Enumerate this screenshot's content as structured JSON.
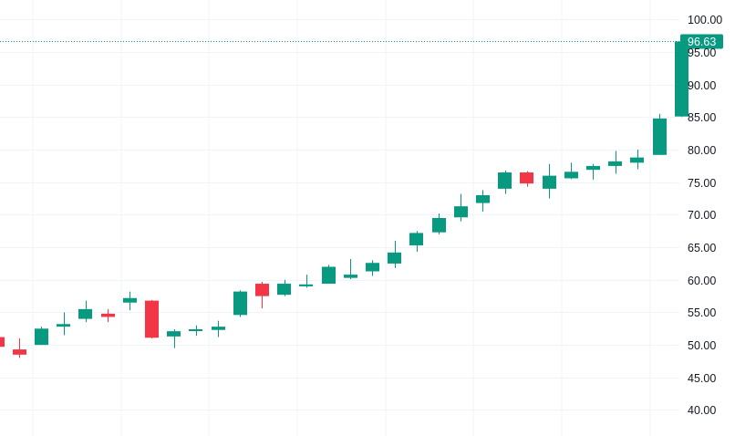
{
  "chart_data": {
    "type": "candlestick",
    "ylim": [
      36,
      103
    ],
    "y_ticks": [
      "40.00",
      "45.00",
      "50.00",
      "55.00",
      "60.00",
      "65.00",
      "70.00",
      "75.00",
      "80.00",
      "85.00",
      "90.00",
      "95.00",
      "100.00"
    ],
    "grid": true,
    "last_price": "96.63",
    "colors": {
      "up": "#089981",
      "down": "#f23645",
      "grid": "#f0f3fa",
      "axis_text": "#131722",
      "last_line": "#089981"
    },
    "candles": [
      {
        "open": 51.2,
        "high": 51.3,
        "low": 49.5,
        "close": 49.7
      },
      {
        "open": 49.3,
        "high": 51.0,
        "low": 48.0,
        "close": 48.5
      },
      {
        "open": 50.0,
        "high": 52.8,
        "low": 50.0,
        "close": 52.5
      },
      {
        "open": 52.8,
        "high": 55.0,
        "low": 51.5,
        "close": 53.2
      },
      {
        "open": 54.0,
        "high": 56.8,
        "low": 53.5,
        "close": 55.5
      },
      {
        "open": 54.8,
        "high": 55.5,
        "low": 53.5,
        "close": 54.3
      },
      {
        "open": 56.5,
        "high": 58.2,
        "low": 55.3,
        "close": 57.2
      },
      {
        "open": 56.8,
        "high": 56.9,
        "low": 51.0,
        "close": 51.1
      },
      {
        "open": 51.3,
        "high": 52.4,
        "low": 49.5,
        "close": 52.1
      },
      {
        "open": 52.2,
        "high": 53.0,
        "low": 51.4,
        "close": 52.4
      },
      {
        "open": 52.3,
        "high": 53.7,
        "low": 51.2,
        "close": 52.8
      },
      {
        "open": 54.6,
        "high": 58.4,
        "low": 54.3,
        "close": 58.2
      },
      {
        "open": 59.4,
        "high": 59.7,
        "low": 55.6,
        "close": 57.5
      },
      {
        "open": 57.7,
        "high": 60.0,
        "low": 57.5,
        "close": 59.4
      },
      {
        "open": 59.0,
        "high": 60.8,
        "low": 58.8,
        "close": 59.3
      },
      {
        "open": 59.4,
        "high": 62.3,
        "low": 59.4,
        "close": 62.0
      },
      {
        "open": 60.3,
        "high": 63.2,
        "low": 60.1,
        "close": 60.8
      },
      {
        "open": 61.3,
        "high": 63.0,
        "low": 60.6,
        "close": 62.6
      },
      {
        "open": 62.5,
        "high": 66.0,
        "low": 61.8,
        "close": 64.2
      },
      {
        "open": 65.3,
        "high": 67.5,
        "low": 64.3,
        "close": 67.2
      },
      {
        "open": 67.3,
        "high": 70.2,
        "low": 67.0,
        "close": 69.5
      },
      {
        "open": 69.6,
        "high": 73.2,
        "low": 69.0,
        "close": 71.3
      },
      {
        "open": 71.8,
        "high": 73.8,
        "low": 70.5,
        "close": 73.0
      },
      {
        "open": 74.0,
        "high": 76.8,
        "low": 73.2,
        "close": 76.5
      },
      {
        "open": 76.5,
        "high": 76.7,
        "low": 74.3,
        "close": 74.8
      },
      {
        "open": 74.0,
        "high": 77.8,
        "low": 72.5,
        "close": 76.0
      },
      {
        "open": 75.6,
        "high": 78.0,
        "low": 75.5,
        "close": 76.6
      },
      {
        "open": 76.9,
        "high": 77.8,
        "low": 75.4,
        "close": 77.5
      },
      {
        "open": 77.5,
        "high": 79.8,
        "low": 76.3,
        "close": 78.2
      },
      {
        "open": 78.0,
        "high": 80.0,
        "low": 77.0,
        "close": 78.8
      },
      {
        "open": 79.2,
        "high": 85.5,
        "low": 79.2,
        "close": 84.8
      },
      {
        "open": 85.1,
        "high": 96.9,
        "low": 85.0,
        "close": 96.63
      }
    ]
  }
}
